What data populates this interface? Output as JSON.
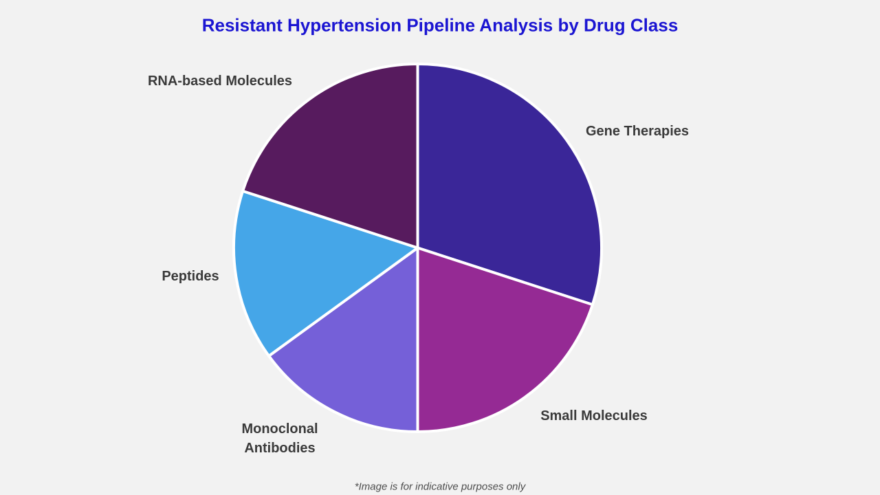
{
  "page": {
    "title": "Resistant Hypertension Pipeline Analysis by Drug Class",
    "footnote": "*Image is for indicative purposes only"
  },
  "colors": {
    "background": "#f2f2f2",
    "title_text": "#1b15d2",
    "label_text": "#3a3a3a",
    "footnote_text": "#4d4d4d",
    "slice_separator": "#ffffff"
  },
  "chart_data": {
    "type": "pie",
    "title": "Resistant Hypertension Pipeline Analysis by Drug Class",
    "direction": "clockwise",
    "start_angle": "12-oclock",
    "legend": "none",
    "values_are_estimated_percent_of_circle": true,
    "slices": [
      {
        "label": "Gene Therapies",
        "display_label": "Gene Therapies",
        "value": 30,
        "color": "#3a2698"
      },
      {
        "label": "Small Molecules",
        "display_label": "Small Molecules",
        "value": 20,
        "color": "#952a94"
      },
      {
        "label": "Monoclonal Antibodies",
        "display_label": "Monoclonal\nAntibodies",
        "value": 15,
        "color": "#7560d8"
      },
      {
        "label": "Peptides",
        "display_label": "Peptides",
        "value": 15,
        "color": "#45a6e8"
      },
      {
        "label": "RNA-based Molecules",
        "display_label": "RNA-based Molecules",
        "value": 20,
        "color": "#571b5e"
      }
    ]
  }
}
